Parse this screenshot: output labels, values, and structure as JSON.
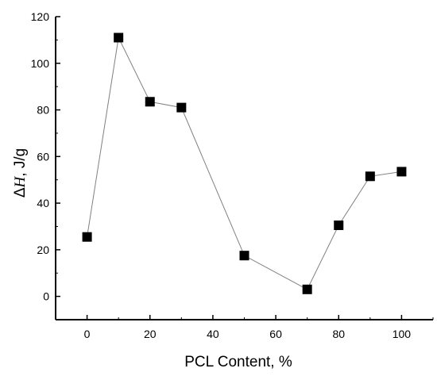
{
  "chart_data": {
    "type": "line",
    "markers": "square",
    "xlabel": "PCL Content, %",
    "ylabel_symbol": "ΔH",
    "ylabel_delta": "Δ",
    "ylabel_var": "H",
    "ylabel_unit": ", J/g",
    "xlim": [
      -10,
      110
    ],
    "ylim": [
      -10,
      120
    ],
    "x_ticks": [
      0,
      20,
      40,
      60,
      80,
      100
    ],
    "y_ticks": [
      0,
      20,
      40,
      60,
      80,
      100,
      120
    ],
    "series": [
      {
        "x": [
          0,
          10,
          20,
          30,
          50,
          70,
          80,
          90,
          100
        ],
        "y": [
          25.5,
          111,
          83.5,
          81,
          17.5,
          3,
          30.5,
          51.5,
          53.5
        ]
      }
    ],
    "line_color": "#808080",
    "marker_color": "#000000",
    "grid": false
  }
}
